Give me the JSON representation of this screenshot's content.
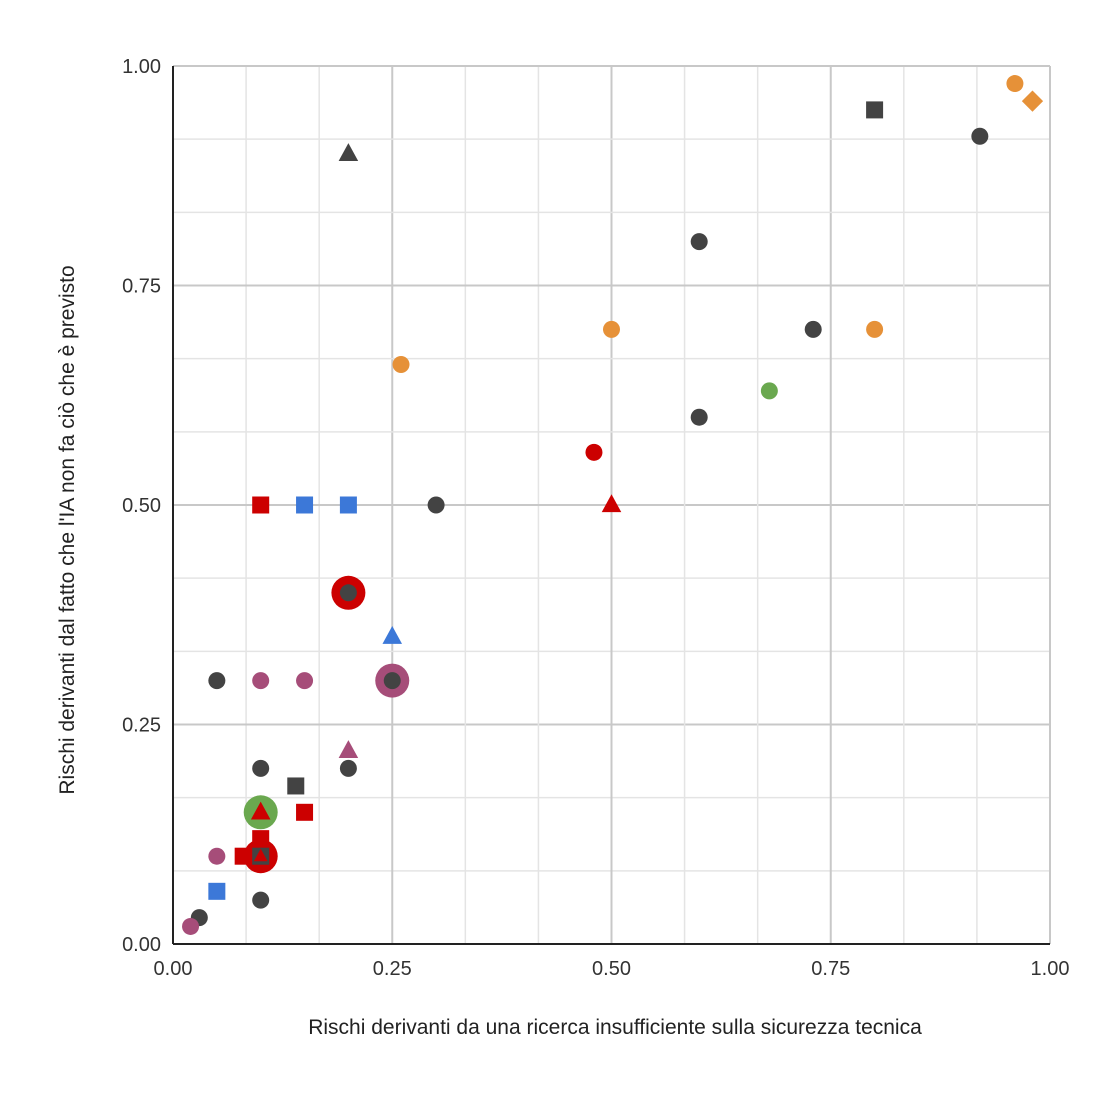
{
  "chart_data": {
    "type": "scatter",
    "title": "",
    "xlabel": "Rischi derivanti da una ricerca insufficiente sulla sicurezza tecnica",
    "ylabel": "Rischi derivanti dal fatto che l'IA non fa ciò che è previsto",
    "xlim": [
      0,
      1
    ],
    "ylim": [
      0,
      1
    ],
    "x_ticks": [
      "0.00",
      "0.25",
      "0.50",
      "0.75",
      "1.00"
    ],
    "y_ticks": [
      "0.00",
      "0.25",
      "0.50",
      "0.75",
      "1.00"
    ],
    "grid": true,
    "legend": "none",
    "colors": {
      "dark": "#434343",
      "orange": "#e69138",
      "red": "#cc0000",
      "blue": "#3c78d8",
      "purple": "#a64d79",
      "green": "#6aa84f"
    },
    "points": [
      {
        "x": 0.2,
        "y": 0.4,
        "shape": "circle",
        "color": "red",
        "size": "large"
      },
      {
        "x": 0.25,
        "y": 0.3,
        "shape": "circle",
        "color": "purple",
        "size": "large"
      },
      {
        "x": 0.1,
        "y": 0.15,
        "shape": "circle",
        "color": "green",
        "size": "large"
      },
      {
        "x": 0.1,
        "y": 0.1,
        "shape": "circle",
        "color": "red",
        "size": "large"
      },
      {
        "x": 0.2,
        "y": 0.9,
        "shape": "triangle",
        "color": "dark",
        "size": "normal"
      },
      {
        "x": 0.8,
        "y": 0.95,
        "shape": "square",
        "color": "dark",
        "size": "normal"
      },
      {
        "x": 0.96,
        "y": 0.98,
        "shape": "circle",
        "color": "orange",
        "size": "normal"
      },
      {
        "x": 0.98,
        "y": 0.96,
        "shape": "diamond",
        "color": "orange",
        "size": "normal"
      },
      {
        "x": 0.92,
        "y": 0.92,
        "shape": "circle",
        "color": "dark",
        "size": "normal"
      },
      {
        "x": 0.6,
        "y": 0.8,
        "shape": "circle",
        "color": "dark",
        "size": "normal"
      },
      {
        "x": 0.5,
        "y": 0.7,
        "shape": "circle",
        "color": "orange",
        "size": "normal"
      },
      {
        "x": 0.73,
        "y": 0.7,
        "shape": "circle",
        "color": "dark",
        "size": "normal"
      },
      {
        "x": 0.8,
        "y": 0.7,
        "shape": "circle",
        "color": "orange",
        "size": "normal"
      },
      {
        "x": 0.26,
        "y": 0.66,
        "shape": "circle",
        "color": "orange",
        "size": "normal"
      },
      {
        "x": 0.68,
        "y": 0.63,
        "shape": "circle",
        "color": "green",
        "size": "normal"
      },
      {
        "x": 0.6,
        "y": 0.6,
        "shape": "circle",
        "color": "dark",
        "size": "normal"
      },
      {
        "x": 0.48,
        "y": 0.56,
        "shape": "circle",
        "color": "red",
        "size": "normal"
      },
      {
        "x": 0.5,
        "y": 0.5,
        "shape": "triangle",
        "color": "red",
        "size": "normal"
      },
      {
        "x": 0.1,
        "y": 0.5,
        "shape": "square",
        "color": "red",
        "size": "normal"
      },
      {
        "x": 0.15,
        "y": 0.5,
        "shape": "square",
        "color": "blue",
        "size": "normal"
      },
      {
        "x": 0.2,
        "y": 0.5,
        "shape": "square",
        "color": "blue",
        "size": "normal"
      },
      {
        "x": 0.3,
        "y": 0.5,
        "shape": "circle",
        "color": "dark",
        "size": "normal"
      },
      {
        "x": 0.2,
        "y": 0.4,
        "shape": "circle",
        "color": "dark",
        "size": "normal"
      },
      {
        "x": 0.25,
        "y": 0.35,
        "shape": "triangle",
        "color": "blue",
        "size": "normal"
      },
      {
        "x": 0.05,
        "y": 0.3,
        "shape": "circle",
        "color": "dark",
        "size": "normal"
      },
      {
        "x": 0.1,
        "y": 0.3,
        "shape": "circle",
        "color": "purple",
        "size": "normal"
      },
      {
        "x": 0.15,
        "y": 0.3,
        "shape": "circle",
        "color": "purple",
        "size": "normal"
      },
      {
        "x": 0.25,
        "y": 0.3,
        "shape": "circle",
        "color": "dark",
        "size": "normal"
      },
      {
        "x": 0.2,
        "y": 0.22,
        "shape": "triangle",
        "color": "purple",
        "size": "normal"
      },
      {
        "x": 0.1,
        "y": 0.2,
        "shape": "circle",
        "color": "dark",
        "size": "normal"
      },
      {
        "x": 0.2,
        "y": 0.2,
        "shape": "circle",
        "color": "dark",
        "size": "normal"
      },
      {
        "x": 0.14,
        "y": 0.18,
        "shape": "square",
        "color": "dark",
        "size": "normal"
      },
      {
        "x": 0.1,
        "y": 0.15,
        "shape": "triangle",
        "color": "red",
        "size": "normal"
      },
      {
        "x": 0.15,
        "y": 0.15,
        "shape": "square",
        "color": "red",
        "size": "normal"
      },
      {
        "x": 0.1,
        "y": 0.12,
        "shape": "square",
        "color": "red",
        "size": "normal"
      },
      {
        "x": 0.08,
        "y": 0.1,
        "shape": "square",
        "color": "red",
        "size": "normal"
      },
      {
        "x": 0.1,
        "y": 0.1,
        "shape": "square",
        "color": "dark",
        "size": "normal"
      },
      {
        "x": 0.1,
        "y": 0.1,
        "shape": "triangle",
        "color": "red",
        "size": "small"
      },
      {
        "x": 0.05,
        "y": 0.1,
        "shape": "circle",
        "color": "purple",
        "size": "normal"
      },
      {
        "x": 0.05,
        "y": 0.06,
        "shape": "square",
        "color": "blue",
        "size": "normal"
      },
      {
        "x": 0.1,
        "y": 0.05,
        "shape": "circle",
        "color": "dark",
        "size": "normal"
      },
      {
        "x": 0.03,
        "y": 0.03,
        "shape": "circle",
        "color": "dark",
        "size": "normal"
      },
      {
        "x": 0.02,
        "y": 0.02,
        "shape": "circle",
        "color": "purple",
        "size": "normal"
      }
    ]
  }
}
